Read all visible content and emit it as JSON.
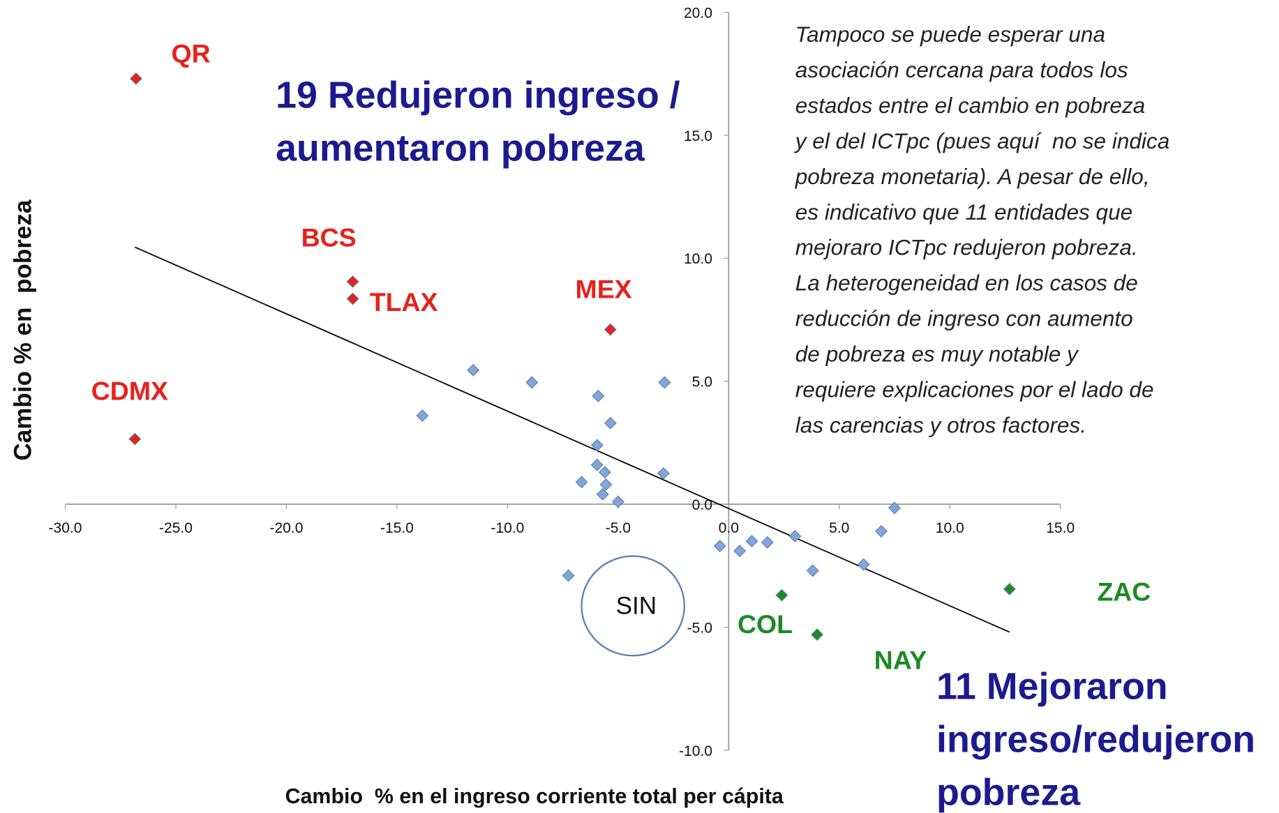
{
  "chart_data": {
    "type": "scatter",
    "xlabel": "Cambio  % en el ingreso corriente total per cápita",
    "ylabel": "Cambio % en  pobreza",
    "xlim": [
      -30,
      15
    ],
    "ylim": [
      -10,
      20
    ],
    "xticks": [
      {
        "value": -30,
        "label": "-30.0"
      },
      {
        "value": -25,
        "label": "-25.0"
      },
      {
        "value": -20,
        "label": "-20.0"
      },
      {
        "value": -15,
        "label": "-15.0"
      },
      {
        "value": -10,
        "label": "-10.0"
      },
      {
        "value": -5,
        "label": "-5.0"
      },
      {
        "value": 0,
        "label": "0.0"
      },
      {
        "value": 5,
        "label": "5.0"
      },
      {
        "value": 10,
        "label": "10.0"
      },
      {
        "value": 15,
        "label": "15.0"
      }
    ],
    "yticks": [
      {
        "value": -10,
        "label": "-10.0"
      },
      {
        "value": -5,
        "label": "-5.0"
      },
      {
        "value": 0,
        "label": "0.0"
      },
      {
        "value": 5,
        "label": "5.0"
      },
      {
        "value": 10,
        "label": "10.0"
      },
      {
        "value": 15,
        "label": "15.0"
      },
      {
        "value": 20,
        "label": "20.0"
      }
    ],
    "series": [
      {
        "color": "#7ea7e0",
        "x": [
          -11.55,
          -8.9,
          -2.9,
          -13.85,
          -5.9,
          -5.35,
          -5.95,
          -5.95,
          -5.6,
          -2.95,
          -6.65,
          -5.55,
          -5.7,
          -5.0,
          7.5,
          -0.4,
          0.5,
          1.05,
          1.75,
          3.0,
          6.9,
          3.8,
          6.1,
          -7.25
        ],
        "y": [
          5.45,
          4.95,
          4.95,
          3.6,
          4.4,
          3.3,
          2.4,
          1.6,
          1.3,
          1.25,
          0.9,
          0.8,
          0.4,
          0.1,
          -0.15,
          -1.7,
          -1.9,
          -1.5,
          -1.55,
          -1.3,
          -1.1,
          -2.7,
          -2.45,
          -2.9
        ]
      },
      {
        "color": "#e8211c",
        "x": [
          -26.8,
          -17.0,
          -17.0,
          -5.35,
          -26.85
        ],
        "y": [
          17.3,
          9.05,
          8.35,
          7.1,
          2.65
        ]
      },
      {
        "color": "#1c8a24",
        "x": [
          12.7,
          2.4,
          4.0
        ],
        "y": [
          -3.45,
          -3.7,
          -5.3
        ]
      }
    ],
    "trendline": {
      "x": [
        -26.85,
        12.7
      ],
      "y": [
        10.45,
        -5.2
      ]
    },
    "annotations": [
      {
        "text": "QR",
        "color": "#e8211c"
      },
      {
        "text": "BCS",
        "color": "#e8211c"
      },
      {
        "text": "TLAX",
        "color": "#e8211c"
      },
      {
        "text": "MEX",
        "color": "#e8211c"
      },
      {
        "text": "CDMX",
        "color": "#e8211c"
      },
      {
        "text": "ZAC",
        "color": "#1c8a24"
      },
      {
        "text": "COL",
        "color": "#1c8a24"
      },
      {
        "text": "NAY",
        "color": "#1c8a24"
      },
      {
        "text": "SIN",
        "color": "#111111"
      }
    ],
    "headline_top": [
      "19 Redujeron ingreso /",
      "aumentaron pobreza"
    ],
    "headline_bottom": [
      "11 Mejoraron",
      "ingreso/redujeron",
      "pobreza"
    ],
    "note": [
      "Tampoco se puede esperar una",
      "asociación cercana para todos los",
      "estados entre el cambio en pobreza",
      "y el del ICTpc (pues aquí  no se indica",
      "pobreza monetaria). A pesar de ello,",
      "es indicativo que 11 entidades que",
      "mejoraro ICTpc redujeron pobreza.",
      "La heterogeneidad en los casos de",
      "reducción de ingreso con aumento",
      "de pobreza es muy notable y",
      "requiere explicaciones por el lado de",
      "las carencias y otros factores."
    ]
  }
}
